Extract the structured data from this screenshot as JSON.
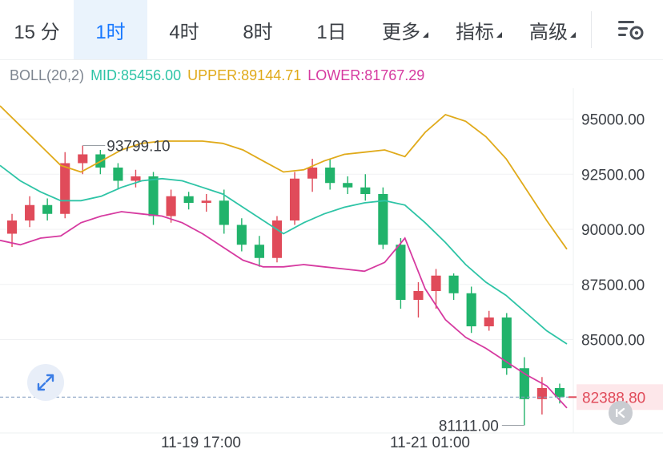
{
  "tabs": [
    {
      "label": "15 分",
      "active": false,
      "dropdown": false
    },
    {
      "label": "1时",
      "active": true,
      "dropdown": false
    },
    {
      "label": "4时",
      "active": false,
      "dropdown": false
    },
    {
      "label": "8时",
      "active": false,
      "dropdown": false
    },
    {
      "label": "1日",
      "active": false,
      "dropdown": false
    },
    {
      "label": "更多",
      "active": false,
      "dropdown": true
    },
    {
      "label": "指标",
      "active": false,
      "dropdown": true
    },
    {
      "label": "高级",
      "active": false,
      "dropdown": true
    }
  ],
  "settings_icon": "chart-settings-icon",
  "legend": {
    "name": "BOLL(20,2)",
    "mid": "MID:85456.00",
    "upper": "UPPER:89144.71",
    "lower": "LOWER:81767.29"
  },
  "colors": {
    "accent": "#1677ff",
    "up": "#e04b5a",
    "down": "#21b36b",
    "mid_line": "#2ec4a6",
    "upper_line": "#e0aa1a",
    "lower_line": "#d63aa0"
  },
  "chart_data": {
    "type": "line",
    "indicator": "BOLL(20,2)",
    "y_ticks": [
      "95000.00",
      "92500.00",
      "90000.00",
      "87500.00",
      "85000.00"
    ],
    "ylim": [
      81200,
      96400
    ],
    "x_ticks": [
      "11-19 17:00",
      "11-21 01:00"
    ],
    "annotations": {
      "high": "93799.10",
      "low": "81111.00"
    },
    "current_price": "82388.80",
    "upper": [
      95600,
      94700,
      93800,
      92900,
      92600,
      93100,
      93600,
      93900,
      94000,
      94000,
      94000,
      93900,
      93600,
      93100,
      92600,
      92700,
      93100,
      93400,
      93500,
      93600,
      93300,
      94400,
      95200,
      94900,
      94200,
      93200,
      91800,
      90400,
      89100
    ],
    "mid": [
      92900,
      92200,
      91700,
      91300,
      91300,
      91500,
      91900,
      92200,
      92300,
      92200,
      91900,
      91600,
      91000,
      90400,
      89800,
      90300,
      90700,
      91000,
      91200,
      91300,
      91100,
      90300,
      89400,
      88400,
      87600,
      87000,
      86200,
      85400,
      84800
    ],
    "lower": [
      89500,
      89300,
      89600,
      89700,
      90300,
      90600,
      90800,
      90700,
      90600,
      90300,
      89800,
      89200,
      88600,
      88300,
      88300,
      88400,
      88300,
      88200,
      88100,
      88500,
      89600,
      87300,
      85900,
      85100,
      84600,
      84000,
      83400,
      82900,
      81900
    ],
    "candles": [
      {
        "o": 89800,
        "h": 90700,
        "l": 89200,
        "c": 90400
      },
      {
        "o": 90400,
        "h": 91500,
        "l": 90100,
        "c": 91100
      },
      {
        "o": 91100,
        "h": 91400,
        "l": 90400,
        "c": 90700
      },
      {
        "o": 90700,
        "h": 93500,
        "l": 90500,
        "c": 93000
      },
      {
        "o": 93000,
        "h": 93800,
        "l": 92500,
        "c": 93400
      },
      {
        "o": 93400,
        "h": 93600,
        "l": 92500,
        "c": 92800
      },
      {
        "o": 92800,
        "h": 93000,
        "l": 91800,
        "c": 92200
      },
      {
        "o": 92200,
        "h": 92700,
        "l": 91900,
        "c": 92400
      },
      {
        "o": 92400,
        "h": 92600,
        "l": 90200,
        "c": 90600
      },
      {
        "o": 90600,
        "h": 91800,
        "l": 90300,
        "c": 91500
      },
      {
        "o": 91500,
        "h": 91700,
        "l": 90900,
        "c": 91200
      },
      {
        "o": 91200,
        "h": 91600,
        "l": 90800,
        "c": 91300
      },
      {
        "o": 91300,
        "h": 91800,
        "l": 89800,
        "c": 90200
      },
      {
        "o": 90200,
        "h": 90500,
        "l": 89000,
        "c": 89300
      },
      {
        "o": 89300,
        "h": 89700,
        "l": 88300,
        "c": 88700
      },
      {
        "o": 88700,
        "h": 90600,
        "l": 88500,
        "c": 90400
      },
      {
        "o": 90400,
        "h": 92600,
        "l": 90200,
        "c": 92300
      },
      {
        "o": 92300,
        "h": 93200,
        "l": 91700,
        "c": 92800
      },
      {
        "o": 92800,
        "h": 93200,
        "l": 91800,
        "c": 92100
      },
      {
        "o": 92100,
        "h": 92400,
        "l": 91600,
        "c": 91900
      },
      {
        "o": 91900,
        "h": 92500,
        "l": 91300,
        "c": 91600
      },
      {
        "o": 91600,
        "h": 91900,
        "l": 89100,
        "c": 89300
      },
      {
        "o": 89300,
        "h": 89600,
        "l": 86400,
        "c": 86800
      },
      {
        "o": 86800,
        "h": 87600,
        "l": 86000,
        "c": 87200
      },
      {
        "o": 87200,
        "h": 88200,
        "l": 86400,
        "c": 87900
      },
      {
        "o": 87900,
        "h": 88000,
        "l": 86800,
        "c": 87100
      },
      {
        "o": 87100,
        "h": 87400,
        "l": 85300,
        "c": 85600
      },
      {
        "o": 85600,
        "h": 86300,
        "l": 85400,
        "c": 86000
      },
      {
        "o": 86000,
        "h": 86200,
        "l": 83400,
        "c": 83700
      },
      {
        "o": 83700,
        "h": 84200,
        "l": 81111,
        "c": 82300
      },
      {
        "o": 82300,
        "h": 83300,
        "l": 81600,
        "c": 82800
      },
      {
        "o": 82800,
        "h": 83000,
        "l": 82100,
        "c": 82389
      }
    ]
  }
}
